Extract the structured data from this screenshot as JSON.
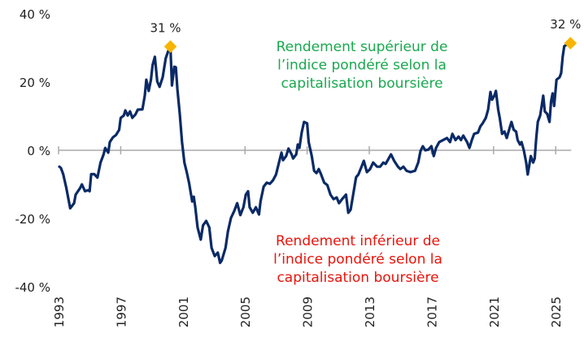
{
  "chart_data": {
    "type": "line",
    "title": "",
    "xlabel": "",
    "ylabel": "",
    "xlim": [
      1993,
      2026
    ],
    "ylim": [
      -40,
      40
    ],
    "grid": false,
    "x_ticks": [
      "1993",
      "1997",
      "2001",
      "2005",
      "2009",
      "2013",
      "2017",
      "2021",
      "2025"
    ],
    "y_ticks": [
      {
        "value": 40,
        "label": "40 %"
      },
      {
        "value": 20,
        "label": "20 %"
      },
      {
        "value": 0,
        "label": "0 %"
      },
      {
        "value": -20,
        "label": "-20 %"
      },
      {
        "value": -40,
        "label": "-40 %"
      }
    ],
    "colors": {
      "line": "#0a2a66",
      "marker": "#f7b500",
      "zero_axis": "#aaaaaa",
      "upper_text": "#1aa84f",
      "lower_text": "#e8140c"
    },
    "series": [
      {
        "points": [
          [
            1993.05,
            -4.8
          ],
          [
            1993.15,
            -5.2
          ],
          [
            1993.3,
            -7
          ],
          [
            1993.5,
            -11
          ],
          [
            1993.75,
            -17
          ],
          [
            1994,
            -15.5
          ],
          [
            1994.1,
            -13
          ],
          [
            1994.4,
            -11
          ],
          [
            1994.5,
            -10
          ],
          [
            1994.7,
            -12
          ],
          [
            1994.9,
            -11.7
          ],
          [
            1995,
            -12
          ],
          [
            1995.1,
            -7
          ],
          [
            1995.3,
            -7
          ],
          [
            1995.5,
            -8
          ],
          [
            1995.7,
            -3.6
          ],
          [
            1995.9,
            -1.2
          ],
          [
            1996,
            0.7
          ],
          [
            1996.2,
            -0.7
          ],
          [
            1996.3,
            2.4
          ],
          [
            1996.5,
            3.8
          ],
          [
            1996.7,
            4.5
          ],
          [
            1996.9,
            6
          ],
          [
            1997,
            9.5
          ],
          [
            1997.2,
            10.2
          ],
          [
            1997.3,
            11.7
          ],
          [
            1997.45,
            10.2
          ],
          [
            1997.6,
            11.4
          ],
          [
            1997.75,
            9.5
          ],
          [
            1997.95,
            10.5
          ],
          [
            1998.1,
            11.9
          ],
          [
            1998.4,
            12
          ],
          [
            1998.55,
            16
          ],
          [
            1998.65,
            20.7
          ],
          [
            1998.8,
            17.4
          ],
          [
            1998.95,
            20.7
          ],
          [
            1999.05,
            25
          ],
          [
            1999.2,
            27.4
          ],
          [
            1999.35,
            20.2
          ],
          [
            1999.5,
            18.6
          ],
          [
            1999.7,
            21.4
          ],
          [
            1999.9,
            27
          ],
          [
            2000.05,
            29
          ],
          [
            2000.2,
            30.5
          ],
          [
            2000.3,
            19
          ],
          [
            2000.45,
            24.5
          ],
          [
            2000.55,
            24.3
          ],
          [
            2000.65,
            17.9
          ],
          [
            2000.8,
            10.7
          ],
          [
            2000.95,
            2.4
          ],
          [
            2001.1,
            -3.6
          ],
          [
            2001.25,
            -6.4
          ],
          [
            2001.4,
            -9.5
          ],
          [
            2001.6,
            -15
          ],
          [
            2001.7,
            -13.6
          ],
          [
            2001.8,
            -16.7
          ],
          [
            2001.95,
            -22.6
          ],
          [
            2002.15,
            -26.2
          ],
          [
            2002.3,
            -22
          ],
          [
            2002.5,
            -20.7
          ],
          [
            2002.7,
            -22.6
          ],
          [
            2002.85,
            -28.6
          ],
          [
            2003.05,
            -31
          ],
          [
            2003.25,
            -30
          ],
          [
            2003.4,
            -33
          ],
          [
            2003.5,
            -32.3
          ],
          [
            2003.75,
            -28.6
          ],
          [
            2003.9,
            -23.8
          ],
          [
            2004.1,
            -19.8
          ],
          [
            2004.3,
            -17.9
          ],
          [
            2004.5,
            -15.5
          ],
          [
            2004.7,
            -19
          ],
          [
            2004.9,
            -16.7
          ],
          [
            2005.05,
            -13
          ],
          [
            2005.2,
            -12
          ],
          [
            2005.3,
            -16.7
          ],
          [
            2005.5,
            -18.3
          ],
          [
            2005.7,
            -16.7
          ],
          [
            2005.9,
            -18.8
          ],
          [
            2006,
            -15
          ],
          [
            2006.2,
            -10.7
          ],
          [
            2006.4,
            -9.5
          ],
          [
            2006.6,
            -9.8
          ],
          [
            2006.8,
            -8.8
          ],
          [
            2007,
            -7.1
          ],
          [
            2007.25,
            -2.4
          ],
          [
            2007.35,
            -0.7
          ],
          [
            2007.45,
            -2.9
          ],
          [
            2007.65,
            -1.7
          ],
          [
            2007.8,
            0.5
          ],
          [
            2008,
            -1.2
          ],
          [
            2008.1,
            -2.4
          ],
          [
            2008.3,
            -1.2
          ],
          [
            2008.4,
            1.7
          ],
          [
            2008.5,
            0.7
          ],
          [
            2008.65,
            5.2
          ],
          [
            2008.8,
            8.3
          ],
          [
            2009,
            7.9
          ],
          [
            2009.1,
            2.4
          ],
          [
            2009.3,
            -1.7
          ],
          [
            2009.45,
            -6
          ],
          [
            2009.6,
            -6.7
          ],
          [
            2009.75,
            -5.5
          ],
          [
            2009.9,
            -7.1
          ],
          [
            2010.1,
            -9.5
          ],
          [
            2010.3,
            -10.2
          ],
          [
            2010.5,
            -13
          ],
          [
            2010.7,
            -14.3
          ],
          [
            2010.9,
            -13.8
          ],
          [
            2011.05,
            -15.5
          ],
          [
            2011.25,
            -14.3
          ],
          [
            2011.5,
            -13
          ],
          [
            2011.65,
            -18.3
          ],
          [
            2011.8,
            -17.4
          ],
          [
            2012,
            -12
          ],
          [
            2012.15,
            -7.9
          ],
          [
            2012.3,
            -7.1
          ],
          [
            2012.5,
            -4.8
          ],
          [
            2012.65,
            -3.1
          ],
          [
            2012.85,
            -6.4
          ],
          [
            2013.05,
            -5.5
          ],
          [
            2013.25,
            -3.6
          ],
          [
            2013.5,
            -4.8
          ],
          [
            2013.7,
            -4.8
          ],
          [
            2013.9,
            -3.6
          ],
          [
            2014.05,
            -4
          ],
          [
            2014.25,
            -2.4
          ],
          [
            2014.4,
            -1.2
          ],
          [
            2014.6,
            -3.1
          ],
          [
            2014.85,
            -4.8
          ],
          [
            2015,
            -5.5
          ],
          [
            2015.2,
            -4.8
          ],
          [
            2015.4,
            -6
          ],
          [
            2015.65,
            -6.4
          ],
          [
            2015.95,
            -6
          ],
          [
            2016.15,
            -3.6
          ],
          [
            2016.3,
            -0.2
          ],
          [
            2016.45,
            1.2
          ],
          [
            2016.6,
            0
          ],
          [
            2016.8,
            0.2
          ],
          [
            2017,
            1.2
          ],
          [
            2017.15,
            -1.7
          ],
          [
            2017.3,
            0.7
          ],
          [
            2017.5,
            2.4
          ],
          [
            2017.75,
            3
          ],
          [
            2018,
            3.6
          ],
          [
            2018.2,
            2.4
          ],
          [
            2018.35,
            4.8
          ],
          [
            2018.55,
            3
          ],
          [
            2018.75,
            4
          ],
          [
            2018.9,
            3
          ],
          [
            2019.05,
            4.3
          ],
          [
            2019.3,
            2.4
          ],
          [
            2019.45,
            0.7
          ],
          [
            2019.6,
            3
          ],
          [
            2019.75,
            4.8
          ],
          [
            2020,
            5.2
          ],
          [
            2020.15,
            7
          ],
          [
            2020.3,
            7.9
          ],
          [
            2020.5,
            9.5
          ],
          [
            2020.65,
            11.9
          ],
          [
            2020.8,
            17.1
          ],
          [
            2020.9,
            14.8
          ],
          [
            2021.05,
            16
          ],
          [
            2021.15,
            17.4
          ],
          [
            2021.3,
            11.9
          ],
          [
            2021.4,
            9.5
          ],
          [
            2021.55,
            4.8
          ],
          [
            2021.7,
            5.5
          ],
          [
            2021.85,
            3.6
          ],
          [
            2022,
            6
          ],
          [
            2022.15,
            8.3
          ],
          [
            2022.3,
            6
          ],
          [
            2022.45,
            5.5
          ],
          [
            2022.55,
            3
          ],
          [
            2022.7,
            1.7
          ],
          [
            2022.8,
            2.4
          ],
          [
            2022.95,
            0
          ],
          [
            2023.1,
            -3.6
          ],
          [
            2023.2,
            -7.1
          ],
          [
            2023.4,
            -1.7
          ],
          [
            2023.55,
            -3.6
          ],
          [
            2023.65,
            -2.4
          ],
          [
            2023.75,
            3.6
          ],
          [
            2023.85,
            8.3
          ],
          [
            2024,
            10.2
          ],
          [
            2024.1,
            13
          ],
          [
            2024.2,
            16
          ],
          [
            2024.3,
            11.4
          ],
          [
            2024.45,
            10.7
          ],
          [
            2024.6,
            8.3
          ],
          [
            2024.7,
            14.3
          ],
          [
            2024.8,
            16.7
          ],
          [
            2024.9,
            13
          ],
          [
            2025.05,
            20.7
          ],
          [
            2025.25,
            21.4
          ],
          [
            2025.35,
            22.6
          ],
          [
            2025.45,
            27.4
          ],
          [
            2025.55,
            30.5
          ],
          [
            2025.95,
            31.6
          ]
        ]
      }
    ],
    "annotations": [
      {
        "x": 2000.2,
        "y": 31,
        "label": "31 %"
      },
      {
        "x": 2025.95,
        "y": 32,
        "label": "32 %"
      }
    ],
    "upper_note": [
      "Rendement supérieur de",
      "l’indice pondéré selon la",
      "capitalisation boursière"
    ],
    "lower_note": [
      "Rendement inférieur de",
      "l’indice pondéré selon la",
      "capitalisation boursière"
    ]
  }
}
